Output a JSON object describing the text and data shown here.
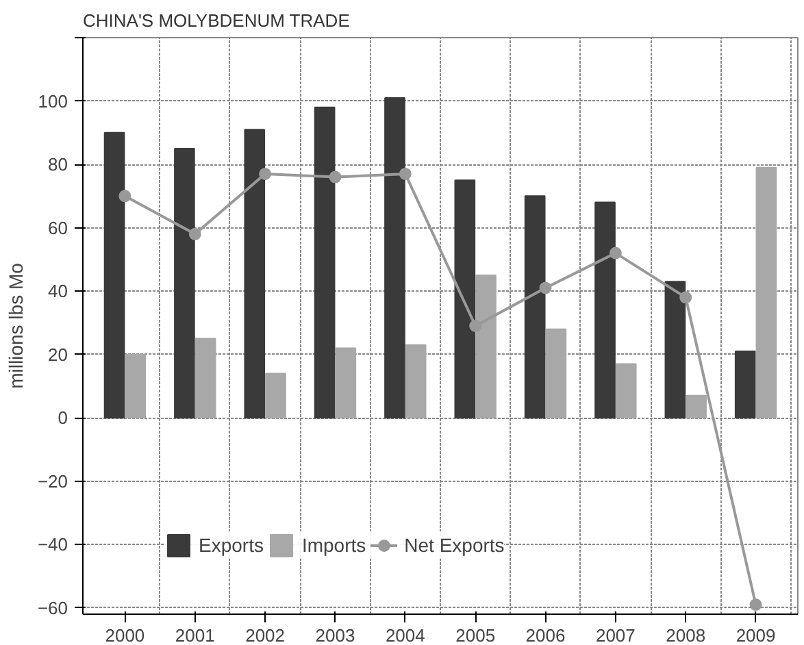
{
  "chart_data": {
    "type": "bar",
    "title": "CHINA'S MOLYBDENUM TRADE",
    "ylabel": "millions lbs Mo",
    "categories": [
      "2000",
      "2001",
      "2002",
      "2003",
      "2004",
      "2005",
      "2006",
      "2007",
      "2008",
      "2009"
    ],
    "series": [
      {
        "name": "Exports",
        "color": "#3a3a3a",
        "values": [
          90,
          85,
          91,
          98,
          101,
          75,
          70,
          68,
          43,
          21
        ]
      },
      {
        "name": "Imports",
        "color": "#a8a8a8",
        "values": [
          20,
          25,
          14,
          22,
          23,
          45,
          28,
          17,
          7,
          79
        ]
      },
      {
        "name": "Net Exports",
        "type": "line",
        "color": "#999999",
        "marker": "circle",
        "values": [
          70,
          58,
          77,
          76,
          77,
          29,
          41,
          52,
          38,
          -59
        ]
      }
    ],
    "ylim": [
      -62,
      120
    ],
    "yticks": [
      -60,
      -40,
      -20,
      0,
      20,
      40,
      60,
      80,
      100,
      {
        "value": 120,
        "label": null
      }
    ],
    "grid": true,
    "legend": "bottom"
  }
}
